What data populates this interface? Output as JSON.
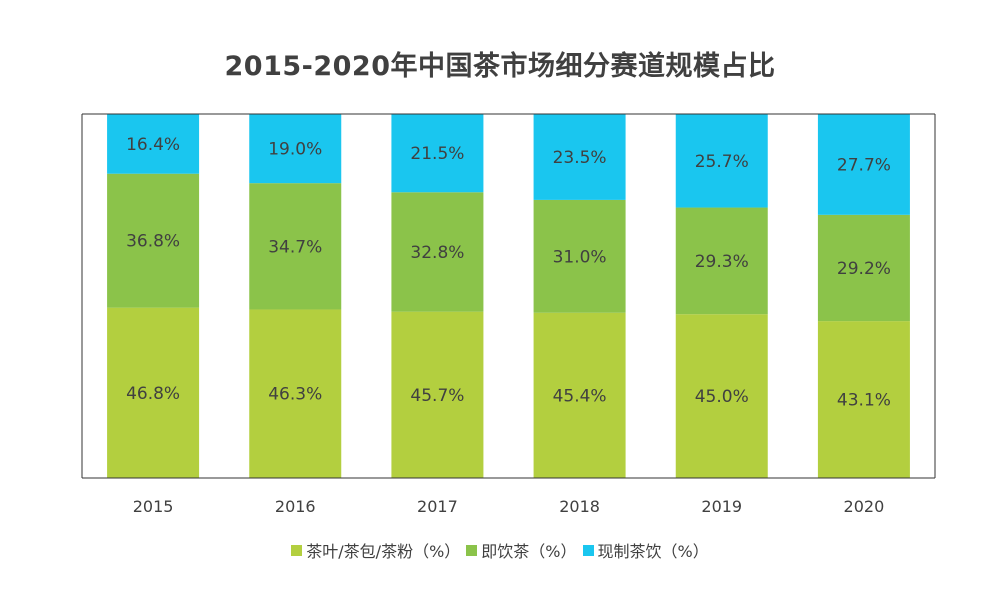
{
  "chart_data": {
    "type": "bar",
    "stacked": true,
    "title": "2015-2020年中国茶市场细分赛道规模占比",
    "categories": [
      "2015",
      "2016",
      "2017",
      "2018",
      "2019",
      "2020"
    ],
    "series": [
      {
        "name": "茶叶/茶包/茶粉（%）",
        "color": "#b3cf3f",
        "values": [
          46.8,
          46.3,
          45.7,
          45.4,
          45.0,
          43.1
        ],
        "labels": [
          "46.8%",
          "46.3%",
          "45.7%",
          "45.4%",
          "45.0%",
          "43.1%"
        ]
      },
      {
        "name": "即饮茶（%）",
        "color": "#8bc34a",
        "values": [
          36.8,
          34.7,
          32.8,
          31.0,
          29.3,
          29.2
        ],
        "labels": [
          "36.8%",
          "34.7%",
          "32.8%",
          "31.0%",
          "29.3%",
          "29.2%"
        ]
      },
      {
        "name": "现制茶饮（%）",
        "color": "#1ac6ef",
        "values": [
          16.4,
          19.0,
          21.5,
          23.5,
          25.7,
          27.7
        ],
        "labels": [
          "16.4%",
          "19.0%",
          "21.5%",
          "23.5%",
          "25.7%",
          "27.7%"
        ]
      }
    ],
    "ylim": [
      0,
      100
    ],
    "legend_position": "bottom",
    "grid": false
  }
}
